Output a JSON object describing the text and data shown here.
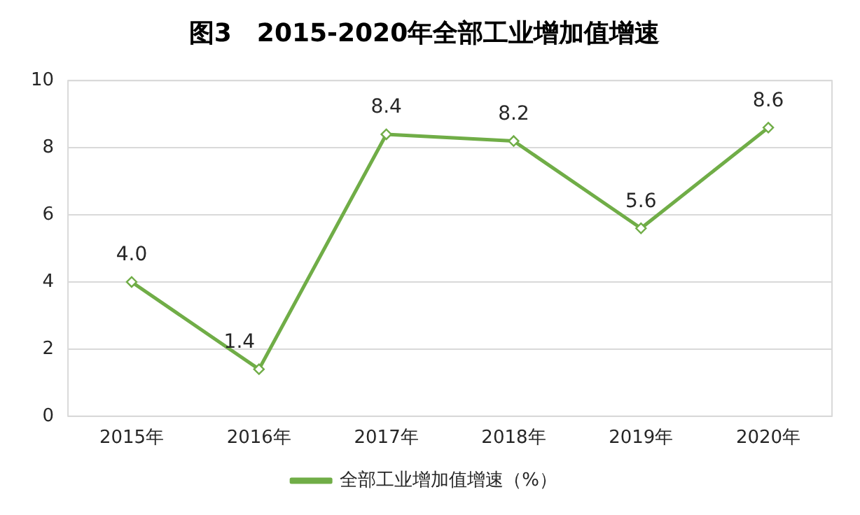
{
  "chart_data": {
    "type": "line",
    "title": "图3　2015-2020年全部工业增加值增速",
    "categories": [
      "2015年",
      "2016年",
      "2017年",
      "2018年",
      "2019年",
      "2020年"
    ],
    "series": [
      {
        "name": "全部工业增加值增速（%）",
        "color": "#70ad47",
        "values": [
          4.0,
          1.4,
          8.4,
          8.2,
          5.6,
          8.6
        ],
        "value_labels": [
          "4.0",
          "1.4",
          "8.4",
          "8.2",
          "5.6",
          "8.6"
        ]
      }
    ],
    "ylim": [
      0,
      10
    ],
    "yticks": [
      0,
      2,
      4,
      6,
      8,
      10
    ],
    "grid": "y",
    "legend": "bottom",
    "marker": "diamond",
    "line_style": "solid"
  }
}
